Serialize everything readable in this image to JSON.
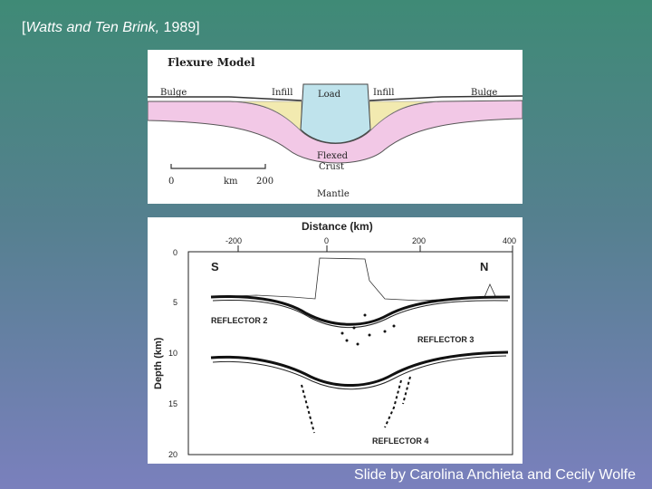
{
  "citation": {
    "authors": "Watts and Ten Brink,",
    "year": "1989"
  },
  "flexure_model": {
    "title": "Flexure Model",
    "labels": {
      "bulge_left": "Bulge",
      "infill_left": "Infill",
      "load": "Load",
      "infill_right": "Infill",
      "bulge_right": "Bulge",
      "flexed_crust_1": "Flexed",
      "flexed_crust_2": "Crust",
      "mantle": "Mantle"
    },
    "scale_bar": {
      "start": "0",
      "unit": "km",
      "end": "200"
    },
    "colors": {
      "infill": "#f2eab0",
      "load": "#bfe3ec",
      "crust": "#f2c8e6"
    }
  },
  "depth_profile": {
    "xlabel": "Distance (km)",
    "ylabel": "Depth (km)",
    "x_ticks": [
      "-200",
      "0",
      "200",
      "400"
    ],
    "y_ticks": [
      "0",
      "5",
      "10",
      "15",
      "20"
    ],
    "xlim": [
      -250,
      400
    ],
    "ylim": [
      0,
      20
    ],
    "direction_left": "S",
    "direction_right": "N",
    "reflectors": [
      "REFLECTOR 2",
      "REFLECTOR 3",
      "REFLECTOR 4"
    ]
  },
  "credit": "Slide by Carolina Anchieta and Cecily Wolfe"
}
